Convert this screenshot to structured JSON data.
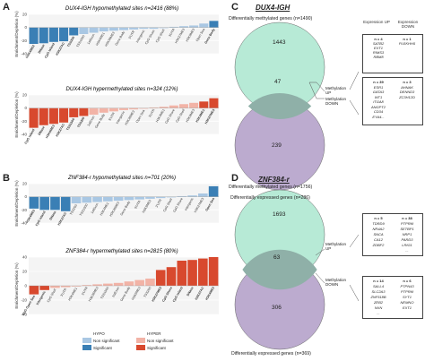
{
  "colors": {
    "hypo_sig": "#3a7fb5",
    "hypo_nonsig": "#a9c7e3",
    "hyper_sig": "#d8492e",
    "hyper_nonsig": "#f2b3a6",
    "venn_top": "#b7ead6",
    "venn_bottom": "#b8a6cc",
    "venn_overlap": "#8fb0a8"
  },
  "panels": {
    "A": {
      "letter": "A",
      "hypo_title": "DUX4-IGH hypomethylated sites n=2416 (88%)",
      "hyper_title": "DUX4-IGH hypermethylated sites n=324 (12%)"
    },
    "B": {
      "letter": "B",
      "hypo_title": "ZNF384-r hypomethylated sites n=701 (20%)",
      "hyper_title": "ZNF384-r hypermethylated sites n=2815 (80%)"
    },
    "C": {
      "letter": "C",
      "title": "DUX4-IGH",
      "top_label": "Differentially methylated genes (n=1490)",
      "bottom_label": "Differentially expressed genes (n=286)",
      "n_top": "1443",
      "n_overlap": "47",
      "n_bottom": "239",
      "up_label": "Methylation UP",
      "down_label": "Methylation DOWN",
      "col_up": "Expression UP",
      "col_down": "Expression DOWN",
      "box1_up": [
        "n = 4",
        "SATB2",
        "EXT1",
        "RIMS3",
        "RBM8"
      ],
      "box1_down": [
        "n = 1",
        "PLEKHH5"
      ],
      "box2_up": [
        "n = 39",
        "ESR1",
        "GATA3",
        "WT1",
        "ITGA8",
        "ANGPT2",
        "CD34",
        "EYA4..."
      ],
      "box2_down": [
        "n = 3",
        "AHNAK",
        "DENND3",
        "ZC3H12D"
      ]
    },
    "D": {
      "letter": "D",
      "title": "ZNF384-r",
      "top_label": "Differentially methylated genes (n=1756)",
      "bottom_label": "Differentially expressed genes (n=369)",
      "n_top": "1693",
      "n_overlap": "63",
      "n_bottom": "306",
      "up_label": "Methylation UP",
      "down_label": "Methylation DOWN",
      "box1_up": [
        "n = 5",
        "TDRD9",
        "NR4A2",
        "SNCA",
        "CA12",
        "ZDBF2"
      ],
      "box1_down": [
        "n = 38",
        "PTPRM",
        "SETBP1",
        "NRP1",
        "PARD3",
        "LRIG1",
        "..."
      ],
      "box2_up": [
        "n = 14",
        "SALL4",
        "SLC2A3",
        "ZNF518B",
        "ZEB2",
        "NXN",
        "..."
      ],
      "box2_down": [
        "n = 6",
        "PTPN43",
        "PTPRM",
        "SYT1",
        "NEMNO",
        "EXT1"
      ]
    }
  },
  "ylabel": "Enrichment/Depletion (%)",
  "legend": {
    "hypo": "HYPO",
    "hyper": "HYPER",
    "nonsig": "Non significant",
    "sig": "Significant"
  },
  "chart_data": [
    {
      "type": "bar",
      "title": "DUX4-IGH hypomethylated sites n=2416 (88%)",
      "ylabel": "Enrichment/Depletion (%)",
      "ylim": [
        -40,
        20
      ],
      "yticks": [
        -40,
        -20,
        0,
        20
      ],
      "categories": [
        "H3K4ME3",
        "DNase",
        "CpG Island",
        "H3K27AC",
        "TSS200",
        "TSS1500",
        "1stExon",
        "H3K4ME1",
        "H3K36ME3",
        "Gene Body",
        "5'UTR",
        "Intergenic",
        "CpG Shore",
        "CpG Shelf",
        "3'UTR",
        "H3K27ME3",
        "H3K9ME3",
        "Open Sea",
        "Gene Body"
      ],
      "values": [
        -25,
        -24,
        -22,
        -21,
        -12,
        -10,
        -8,
        -6,
        -5,
        -4,
        -3,
        -2,
        -2,
        -1,
        1,
        2,
        3,
        6,
        10
      ],
      "significant": [
        true,
        true,
        true,
        true,
        true,
        false,
        false,
        false,
        false,
        false,
        false,
        false,
        false,
        false,
        false,
        false,
        false,
        false,
        true
      ]
    },
    {
      "type": "bar",
      "title": "DUX4-IGH hypermethylated sites n=324 (12%)",
      "ylim": [
        -40,
        20
      ],
      "yticks": [
        -40,
        -20,
        0,
        20
      ],
      "categories": [
        "CpG Island",
        "DNase",
        "H3K4ME3",
        "H3K27AC",
        "TSS1500",
        "TSS200",
        "1stExon",
        "Gene Body",
        "5'UTR",
        "Intergenic",
        "H3K36ME3",
        "Open Sea",
        "3'UTR",
        "H3K4ME1",
        "CpG Shore",
        "CpG Shelf",
        "H3K9ME3",
        "H3K4ME1",
        "H3K27ME3"
      ],
      "values": [
        -30,
        -26,
        -24,
        -22,
        -14,
        -12,
        -10,
        -7,
        -5,
        -3,
        -2,
        -1,
        1,
        2,
        4,
        6,
        8,
        10,
        15
      ],
      "significant": [
        true,
        true,
        true,
        true,
        true,
        true,
        false,
        false,
        false,
        false,
        false,
        false,
        false,
        false,
        false,
        false,
        false,
        true,
        true
      ]
    },
    {
      "type": "bar",
      "title": "ZNF384-r hypomethylated sites n=701 (20%)",
      "ylim": [
        -40,
        20
      ],
      "yticks": [
        -40,
        -20,
        0,
        20
      ],
      "categories": [
        "H3K4ME3",
        "CpG Island",
        "DNase",
        "H3K27AC",
        "TSS200",
        "TSS1500",
        "1stExon",
        "H3K4ME1",
        "H3K36ME3",
        "Gene Body",
        "5'UTR",
        "H3K9ME3",
        "3'UTR",
        "CpG Shelf",
        "CpG Shore",
        "Intergenic",
        "H3K27ME3",
        "Open Sea"
      ],
      "values": [
        -18,
        -20,
        -20,
        -22,
        -10,
        -9,
        -8,
        -7,
        -6,
        -5,
        -4,
        -3,
        -2,
        -1,
        1,
        2,
        5,
        16
      ],
      "significant": [
        true,
        true,
        true,
        true,
        false,
        false,
        false,
        false,
        false,
        false,
        false,
        false,
        false,
        false,
        false,
        false,
        false,
        true
      ]
    },
    {
      "type": "bar",
      "title": "ZNF384-r hypermethylated sites n=2815 (80%)",
      "ylim": [
        -40,
        40
      ],
      "yticks": [
        -40,
        -20,
        0,
        20,
        40
      ],
      "categories": [
        "CpG Open Sea",
        "Intergenic",
        "CpG Shelf",
        "3'UTR",
        "H3K4ME1",
        "5'UTR",
        "H3K36ME3",
        "TSS1500",
        "1stExon",
        "Gene Body",
        "H3K9ME3",
        "TSS200",
        "H3K27ME3",
        "CpG Shore",
        "CpG Island",
        "DNase",
        "H3K27AC",
        "H3K4ME3"
      ],
      "values": [
        -12,
        -6,
        -3,
        -2,
        -1,
        1,
        2,
        3,
        4,
        6,
        8,
        10,
        22,
        26,
        35,
        36,
        38,
        40
      ],
      "significant": [
        true,
        true,
        false,
        false,
        false,
        false,
        false,
        false,
        false,
        false,
        false,
        false,
        true,
        true,
        true,
        true,
        true,
        true
      ]
    }
  ]
}
